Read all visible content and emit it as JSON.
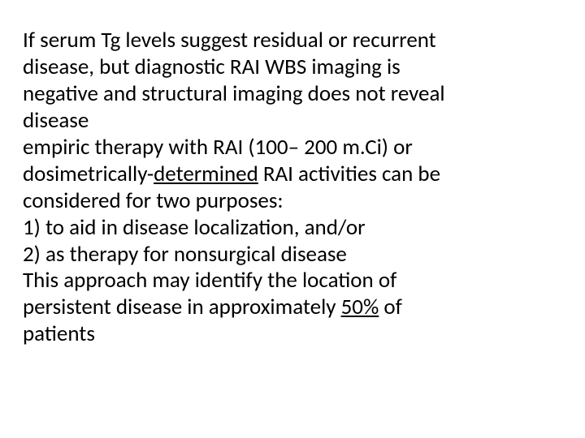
{
  "slide": {
    "text_color": "#000000",
    "background_color": "#ffffff",
    "font_family": "Calibri",
    "font_size_pt": 20,
    "lines": {
      "l1": "If serum Tg levels suggest residual or recurrent",
      "l2": "disease, but diagnostic RAI WBS imaging is",
      "l3": "negative and structural imaging does not reveal",
      "l4": "disease",
      "l5": "empiric therapy with RAI (100– 200 m.Ci) or",
      "l6_pre": " dosimetrically-",
      "l6_mid": "determined",
      "l6_post": " RAI activities can be",
      "l7": "considered for two purposes:",
      "l8": "1) to aid in disease localization, and/or",
      "l9": " 2) as therapy for nonsurgical disease",
      "l10": "This approach may identify the location of",
      "l11_pre": "persistent disease in approximately ",
      "l11_pct": "50%",
      "l11_post": " of",
      "l12": " patients"
    }
  }
}
